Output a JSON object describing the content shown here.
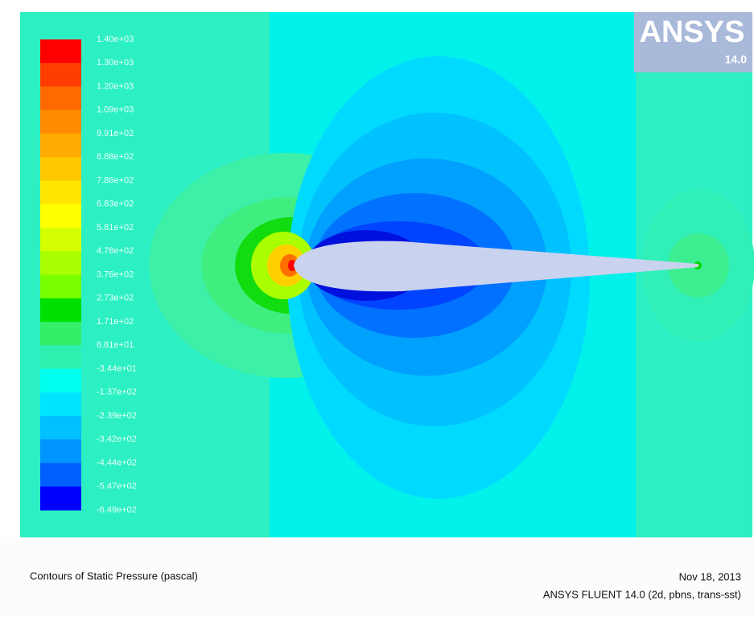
{
  "colorbar": {
    "labels": [
      "1.40e+03",
      "1.30e+03",
      "1.20e+03",
      "1.09e+03",
      "9.91e+02",
      "8.88e+02",
      "7.86e+02",
      "6.83e+02",
      "5.81e+02",
      "4.78e+02",
      "3.76e+02",
      "2.73e+02",
      "1.71e+02",
      "6.81e+01",
      "-3.44e+01",
      "-1.37e+02",
      "-2.39e+02",
      "-3.42e+02",
      "-4.44e+02",
      "-5.47e+02",
      "-6.49e+02"
    ],
    "colors": [
      "#ff0000",
      "#ff3d00",
      "#ff6a00",
      "#ff8c00",
      "#ffaa00",
      "#ffc800",
      "#ffe600",
      "#ffff00",
      "#d4ff00",
      "#aaff00",
      "#7aff00",
      "#00e000",
      "#33ee66",
      "#2ef0b0",
      "#00ffee",
      "#00e5ff",
      "#00c0ff",
      "#0096ff",
      "#0060ff",
      "#0000ff"
    ]
  },
  "logo": {
    "name": "ANSYS",
    "version": "14.0"
  },
  "footer": {
    "title": "Contours of Static Pressure (pascal)",
    "date": "Nov 18, 2013",
    "software": "ANSYS FLUENT 14.0 (2d, pbns, trans-sst)"
  }
}
